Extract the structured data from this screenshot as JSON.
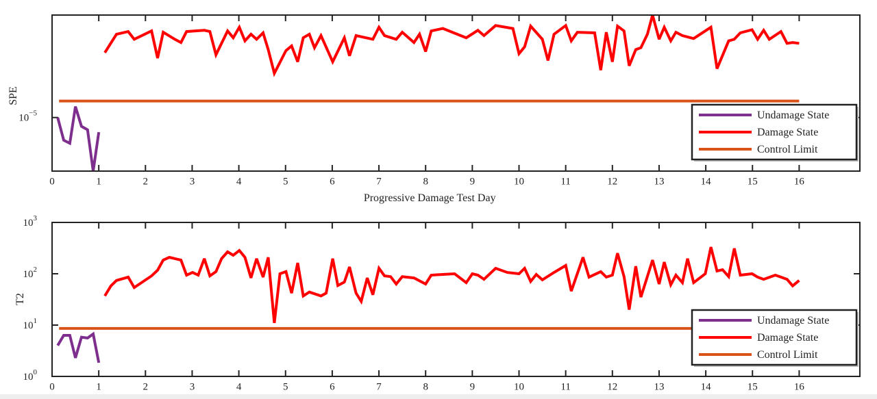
{
  "chart_data": [
    {
      "type": "line",
      "ylabel": "SPE",
      "xlabel": "Progressive Damage Test Day",
      "ylog": true,
      "grid": false,
      "legend": "southeast",
      "xlim": [
        0,
        17.3
      ],
      "xticks": [
        0,
        1,
        2,
        3,
        4,
        5,
        6,
        7,
        8,
        9,
        10,
        11,
        12,
        13,
        14,
        15,
        16
      ],
      "ylim": [
        3e-06,
        0.0001
      ],
      "yticks": [
        {
          "value": 1e-05,
          "label": "10",
          "exponent": "−5"
        }
      ],
      "series": [
        {
          "name": "Undamage State",
          "color": "#7e2f8e",
          "x": [
            0.12,
            0.25,
            0.38,
            0.5,
            0.63,
            0.76,
            0.88,
            1.0
          ],
          "values": [
            1e-05,
            6e-06,
            5.6e-06,
            1.28e-05,
            8.2e-06,
            7.6e-06,
            3e-06,
            7.2e-06
          ]
        },
        {
          "name": "Damage State",
          "color": "#ff0000",
          "x": [
            1.13,
            1.38,
            1.63,
            1.76,
            2.13,
            2.26,
            2.38,
            2.63,
            2.76,
            2.88,
            3.26,
            3.38,
            3.51,
            3.76,
            3.88,
            4.01,
            4.13,
            4.26,
            4.38,
            4.52,
            4.63,
            4.76,
            5.01,
            5.13,
            5.26,
            5.38,
            5.51,
            5.62,
            5.76,
            6.01,
            6.26,
            6.37,
            6.51,
            6.87,
            7.0,
            7.12,
            7.37,
            7.5,
            7.75,
            7.87,
            8.0,
            8.12,
            8.37,
            8.87,
            9.12,
            9.25,
            9.5,
            9.87,
            10.0,
            10.12,
            10.25,
            10.5,
            10.62,
            10.75,
            11.0,
            11.12,
            11.25,
            11.62,
            11.75,
            11.87,
            12.0,
            12.11,
            12.25,
            12.36,
            12.5,
            12.61,
            12.75,
            12.86,
            13.0,
            13.11,
            13.25,
            13.36,
            13.5,
            13.74,
            14.11,
            14.24,
            14.49,
            14.61,
            14.74,
            14.99,
            15.11,
            15.24,
            15.36,
            15.61,
            15.74,
            15.86,
            16
          ],
          "values": [
            4.3e-05,
            6.5e-05,
            6.9e-05,
            5.8e-05,
            7e-05,
            3.8e-05,
            6.8e-05,
            5.8e-05,
            5.4e-05,
            6.9e-05,
            7.1e-05,
            6.9e-05,
            4.1e-05,
            7e-05,
            6e-05,
            7.6e-05,
            5.6e-05,
            6.5e-05,
            5.8e-05,
            6.7e-05,
            4.6e-05,
            2.7e-05,
            4.5e-05,
            5e-05,
            3.5e-05,
            6e-05,
            6.5e-05,
            4.8e-05,
            6.3e-05,
            3.5e-05,
            6e-05,
            4e-05,
            6.3e-05,
            5.8e-05,
            7.6e-05,
            6.3e-05,
            5.8e-05,
            6.8e-05,
            5.4e-05,
            6.5e-05,
            4.4e-05,
            7e-05,
            7.4e-05,
            6e-05,
            7.1e-05,
            6.3e-05,
            7.9e-05,
            7.4e-05,
            4.2e-05,
            4.9e-05,
            7.8e-05,
            5.8e-05,
            3.6e-05,
            6.5e-05,
            7.9e-05,
            5.6e-05,
            6.8e-05,
            6.7e-05,
            2.9e-05,
            6.8e-05,
            3.5e-05,
            7.8e-05,
            7e-05,
            3.2e-05,
            4.6e-05,
            4.8e-05,
            6.5e-05,
            0.0001,
            5.8e-05,
            7.6e-05,
            5.6e-05,
            6.8e-05,
            6.3e-05,
            5.9e-05,
            7.6e-05,
            3e-05,
            5.6e-05,
            5.8e-05,
            6.7e-05,
            7.2e-05,
            5.8e-05,
            7.1e-05,
            5.8e-05,
            6.9e-05,
            5.3e-05,
            5.4e-05,
            5.3e-05
          ]
        },
        {
          "name": "Control Limit",
          "color": "#d95319",
          "x": [
            0.15,
            16
          ],
          "values": [
            1.45e-05,
            1.45e-05
          ]
        }
      ]
    },
    {
      "type": "line",
      "ylabel": "T2",
      "ylog": true,
      "grid": false,
      "legend": "southeast",
      "xlim": [
        0,
        17.3
      ],
      "xticks": [
        0,
        1,
        2,
        3,
        4,
        5,
        6,
        7,
        8,
        9,
        10,
        11,
        12,
        13,
        14,
        15,
        16
      ],
      "ylim": [
        1,
        1000
      ],
      "yticks": [
        {
          "value": 1,
          "label": "10",
          "exponent": "0"
        },
        {
          "value": 10,
          "label": "10",
          "exponent": "1"
        },
        {
          "value": 100,
          "label": "10",
          "exponent": "2"
        },
        {
          "value": 1000,
          "label": "10",
          "exponent": "3"
        }
      ],
      "series": [
        {
          "name": "Undamage State",
          "color": "#7e2f8e",
          "x": [
            0.12,
            0.25,
            0.38,
            0.5,
            0.63,
            0.76,
            0.88,
            1.0
          ],
          "values": [
            4.0,
            6.3,
            6.3,
            2.3,
            5.8,
            5.6,
            6.7,
            1.85
          ]
        },
        {
          "name": "Damage State",
          "color": "#ff0000",
          "x": [
            1.13,
            1.26,
            1.38,
            1.63,
            1.76,
            2.13,
            2.26,
            2.38,
            2.51,
            2.76,
            2.88,
            3.01,
            3.13,
            3.26,
            3.38,
            3.51,
            3.63,
            3.76,
            3.88,
            4.01,
            4.13,
            4.26,
            4.38,
            4.52,
            4.63,
            4.76,
            4.88,
            5.01,
            5.13,
            5.26,
            5.38,
            5.51,
            5.76,
            5.87,
            6.01,
            6.12,
            6.26,
            6.37,
            6.51,
            6.62,
            6.75,
            6.87,
            7.0,
            7.12,
            7.25,
            7.37,
            7.5,
            7.75,
            8.0,
            8.12,
            8.37,
            8.62,
            8.87,
            9.0,
            9.12,
            9.25,
            9.5,
            9.75,
            10.0,
            10.12,
            10.25,
            10.37,
            10.5,
            10.75,
            11.0,
            11.12,
            11.37,
            11.5,
            11.75,
            11.87,
            12.0,
            12.11,
            12.25,
            12.36,
            12.5,
            12.61,
            12.86,
            13.0,
            13.11,
            13.25,
            13.36,
            13.5,
            13.61,
            13.74,
            13.99,
            14.11,
            14.24,
            14.36,
            14.49,
            14.61,
            14.74,
            14.99,
            15.11,
            15.24,
            15.49,
            15.74,
            15.86,
            16
          ],
          "values": [
            37,
            58,
            74,
            86,
            54,
            91,
            117,
            185,
            209,
            185,
            94,
            106,
            94,
            197,
            91,
            110,
            197,
            267,
            229,
            284,
            209,
            83,
            197,
            86,
            209,
            11,
            100,
            110,
            42,
            163,
            37,
            44,
            37,
            42,
            197,
            59,
            69,
            136,
            42,
            29,
            83,
            39,
            128,
            91,
            88,
            63,
            88,
            83,
            63,
            94,
            97,
            100,
            67,
            100,
            94,
            78,
            128,
            106,
            100,
            128,
            71,
            97,
            76,
            106,
            145,
            46,
            209,
            86,
            110,
            86,
            94,
            251,
            88,
            20,
            140,
            35,
            185,
            63,
            169,
            61,
            94,
            67,
            197,
            67,
            100,
            331,
            113,
            120,
            88,
            311,
            94,
            100,
            86,
            78,
            94,
            78,
            58,
            74
          ]
        },
        {
          "name": "Control Limit",
          "color": "#d95319",
          "x": [
            0.15,
            16
          ],
          "values": [
            8.6,
            8.6
          ]
        }
      ]
    }
  ]
}
